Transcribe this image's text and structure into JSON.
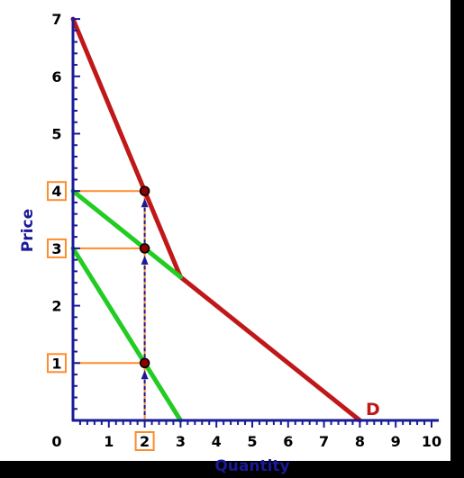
{
  "chart_data": {
    "type": "line",
    "xlabel": "Quantity",
    "ylabel": "Price",
    "xlim": [
      0,
      10
    ],
    "ylim": [
      0,
      7
    ],
    "x_ticks": [
      "0",
      "1",
      "2",
      "3",
      "4",
      "5",
      "6",
      "7",
      "8",
      "9",
      "10"
    ],
    "y_ticks": [
      "1",
      "2",
      "3",
      "4",
      "5",
      "6",
      "7"
    ],
    "series": [
      {
        "name": "D",
        "color": "#c01818",
        "points": [
          [
            0,
            7
          ],
          [
            3,
            2.5
          ],
          [
            8,
            0
          ]
        ]
      },
      {
        "color": "#22cc22",
        "points": [
          [
            0,
            4
          ],
          [
            3,
            2.5
          ]
        ]
      },
      {
        "color": "#22cc22",
        "points": [
          [
            0,
            3
          ],
          [
            3,
            0
          ]
        ]
      }
    ],
    "highlight_x": "2",
    "highlight_prices": [
      "4",
      "3",
      "1"
    ],
    "points_of_interest": [
      [
        2,
        4
      ],
      [
        2,
        3
      ],
      [
        2,
        1
      ]
    ],
    "colors": {
      "background": "#ffffff",
      "axis": "#1a1a99",
      "demand": "#c01818",
      "green": "#22cc22",
      "guides": "#ff8c2a",
      "arrows": "#1a1a99",
      "points": "#8b0000"
    }
  }
}
